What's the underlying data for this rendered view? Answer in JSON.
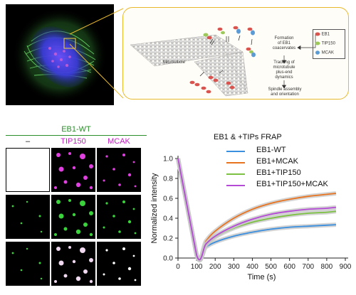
{
  "schematic": {
    "microtubule_label": "Microtubule",
    "step1": [
      "Formation",
      "of EB1",
      "coacervates"
    ],
    "step2": [
      "Tracking of",
      "microtubule",
      "plus-end",
      "dynamics"
    ],
    "step3": [
      "Spindle assembly",
      "and orientation"
    ],
    "legend": [
      {
        "label": "EB1",
        "color": "#d9534f"
      },
      {
        "label": "TIP150",
        "color": "#9cc95a"
      },
      {
        "label": "MCAK",
        "color": "#5b9bd5"
      }
    ]
  },
  "micrographs": {
    "group_label": "EB1-WT",
    "columns": [
      {
        "label": "–",
        "color": "#111111"
      },
      {
        "label": "TIP150",
        "color": "#c21fc2"
      },
      {
        "label": "MCAK",
        "color": "#c21fc2"
      }
    ]
  },
  "chart_data": {
    "type": "line",
    "title": "EB1 & +TIPs FRAP",
    "xlabel": "Time (s)",
    "ylabel": "Normalized intensity",
    "xlim": [
      0,
      900
    ],
    "ylim": [
      0,
      1.0
    ],
    "xticks": [
      0,
      100,
      200,
      300,
      400,
      500,
      600,
      700,
      800,
      900
    ],
    "yticks": [
      0.0,
      0.2,
      0.4,
      0.6,
      0.8,
      1.0
    ],
    "bleach_time": 100,
    "series": [
      {
        "name": "EB1-WT",
        "color": "#3a8fde",
        "x": [
          0,
          100,
          150,
          200,
          300,
          400,
          500,
          600,
          700,
          800,
          850
        ],
        "y": [
          1.0,
          0.03,
          0.11,
          0.16,
          0.22,
          0.26,
          0.29,
          0.31,
          0.32,
          0.33,
          0.335
        ]
      },
      {
        "name": "EB1+MCAK",
        "color": "#e8731f",
        "x": [
          0,
          100,
          150,
          200,
          300,
          400,
          500,
          600,
          700,
          800,
          850
        ],
        "y": [
          1.0,
          0.03,
          0.17,
          0.27,
          0.4,
          0.49,
          0.55,
          0.59,
          0.62,
          0.64,
          0.65
        ]
      },
      {
        "name": "EB1+TIP150",
        "color": "#7cc142",
        "x": [
          0,
          100,
          150,
          200,
          300,
          400,
          500,
          600,
          700,
          800,
          850
        ],
        "y": [
          1.0,
          0.03,
          0.13,
          0.21,
          0.3,
          0.36,
          0.4,
          0.43,
          0.45,
          0.46,
          0.47
        ]
      },
      {
        "name": "EB1+TIP150+MCAK",
        "color": "#b44ad6",
        "x": [
          0,
          100,
          150,
          200,
          300,
          400,
          500,
          600,
          700,
          800,
          850
        ],
        "y": [
          1.0,
          0.03,
          0.14,
          0.22,
          0.32,
          0.39,
          0.44,
          0.47,
          0.49,
          0.5,
          0.51
        ]
      }
    ]
  }
}
